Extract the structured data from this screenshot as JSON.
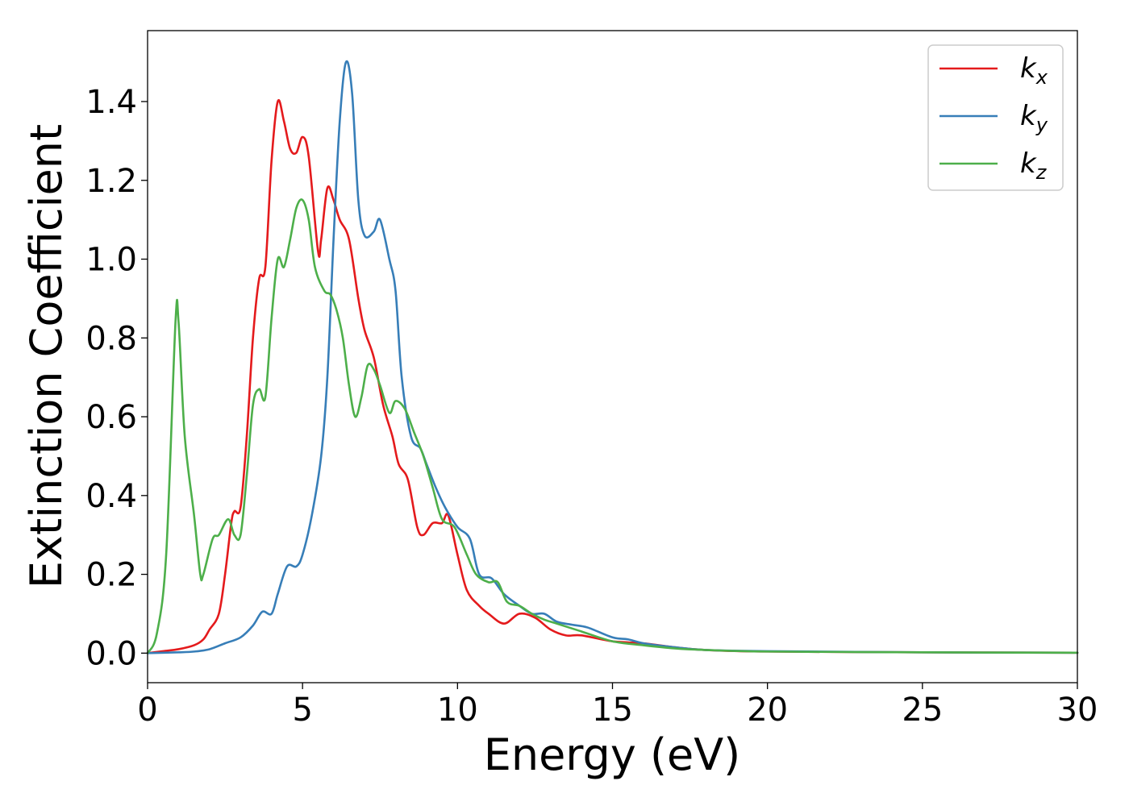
{
  "chart_data": {
    "type": "line",
    "title": "",
    "xlabel": "Energy (eV)",
    "ylabel": "Extinction Coefficient",
    "xlim": [
      0,
      30
    ],
    "ylim": [
      -0.075,
      1.58
    ],
    "xticks": [
      0,
      5,
      10,
      15,
      20,
      25,
      30
    ],
    "xtick_labels": [
      "0",
      "5",
      "10",
      "15",
      "20",
      "25",
      "30"
    ],
    "yticks": [
      0.0,
      0.2,
      0.4,
      0.6,
      0.8,
      1.0,
      1.2,
      1.4
    ],
    "ytick_labels": [
      "0.0",
      "0.2",
      "0.4",
      "0.6",
      "0.8",
      "1.0",
      "1.2",
      "1.4"
    ],
    "grid": false,
    "legend": "top-right",
    "series": [
      {
        "name": "k_x",
        "label_base": "k",
        "label_sub": "x",
        "color": "#e41a1c",
        "points": [
          [
            0,
            0.0
          ],
          [
            0.5,
            0.005
          ],
          [
            1.0,
            0.01
          ],
          [
            1.5,
            0.02
          ],
          [
            1.8,
            0.035
          ],
          [
            2.0,
            0.06
          ],
          [
            2.3,
            0.1
          ],
          [
            2.5,
            0.2
          ],
          [
            2.7,
            0.33
          ],
          [
            2.8,
            0.36
          ],
          [
            3.0,
            0.37
          ],
          [
            3.2,
            0.55
          ],
          [
            3.4,
            0.8
          ],
          [
            3.6,
            0.95
          ],
          [
            3.8,
            0.98
          ],
          [
            4.0,
            1.25
          ],
          [
            4.2,
            1.4
          ],
          [
            4.4,
            1.35
          ],
          [
            4.6,
            1.28
          ],
          [
            4.8,
            1.27
          ],
          [
            5.0,
            1.31
          ],
          [
            5.2,
            1.26
          ],
          [
            5.5,
            1.02
          ],
          [
            5.6,
            1.05
          ],
          [
            5.8,
            1.18
          ],
          [
            6.0,
            1.15
          ],
          [
            6.2,
            1.1
          ],
          [
            6.5,
            1.05
          ],
          [
            6.8,
            0.9
          ],
          [
            7.0,
            0.82
          ],
          [
            7.3,
            0.75
          ],
          [
            7.6,
            0.63
          ],
          [
            7.9,
            0.55
          ],
          [
            8.1,
            0.48
          ],
          [
            8.4,
            0.44
          ],
          [
            8.7,
            0.32
          ],
          [
            8.9,
            0.3
          ],
          [
            9.2,
            0.33
          ],
          [
            9.5,
            0.33
          ],
          [
            9.7,
            0.35
          ],
          [
            10.0,
            0.25
          ],
          [
            10.3,
            0.16
          ],
          [
            10.7,
            0.12
          ],
          [
            11.0,
            0.1
          ],
          [
            11.5,
            0.075
          ],
          [
            12.0,
            0.1
          ],
          [
            12.5,
            0.09
          ],
          [
            13.0,
            0.06
          ],
          [
            13.5,
            0.045
          ],
          [
            14.0,
            0.045
          ],
          [
            15.0,
            0.03
          ],
          [
            16.0,
            0.025
          ],
          [
            17.0,
            0.015
          ],
          [
            18.0,
            0.008
          ],
          [
            20.0,
            0.004
          ],
          [
            25.0,
            0.002
          ],
          [
            30.0,
            0.001
          ]
        ]
      },
      {
        "name": "k_y",
        "label_base": "k",
        "label_sub": "y",
        "color": "#377eb8",
        "points": [
          [
            0,
            0.0
          ],
          [
            1.0,
            0.002
          ],
          [
            1.5,
            0.004
          ],
          [
            2.0,
            0.01
          ],
          [
            2.5,
            0.025
          ],
          [
            3.0,
            0.04
          ],
          [
            3.4,
            0.07
          ],
          [
            3.7,
            0.105
          ],
          [
            4.0,
            0.1
          ],
          [
            4.2,
            0.15
          ],
          [
            4.5,
            0.22
          ],
          [
            4.8,
            0.22
          ],
          [
            5.0,
            0.25
          ],
          [
            5.3,
            0.35
          ],
          [
            5.6,
            0.5
          ],
          [
            5.8,
            0.7
          ],
          [
            6.0,
            1.05
          ],
          [
            6.2,
            1.35
          ],
          [
            6.4,
            1.5
          ],
          [
            6.6,
            1.42
          ],
          [
            6.8,
            1.15
          ],
          [
            7.0,
            1.06
          ],
          [
            7.3,
            1.07
          ],
          [
            7.5,
            1.1
          ],
          [
            7.8,
            1.0
          ],
          [
            8.0,
            0.92
          ],
          [
            8.2,
            0.7
          ],
          [
            8.5,
            0.55
          ],
          [
            8.8,
            0.52
          ],
          [
            9.0,
            0.48
          ],
          [
            9.3,
            0.42
          ],
          [
            9.6,
            0.37
          ],
          [
            10.0,
            0.32
          ],
          [
            10.4,
            0.29
          ],
          [
            10.7,
            0.2
          ],
          [
            11.1,
            0.19
          ],
          [
            11.5,
            0.15
          ],
          [
            12.0,
            0.12
          ],
          [
            12.4,
            0.1
          ],
          [
            12.8,
            0.1
          ],
          [
            13.2,
            0.08
          ],
          [
            13.7,
            0.072
          ],
          [
            14.2,
            0.065
          ],
          [
            15.0,
            0.04
          ],
          [
            15.5,
            0.035
          ],
          [
            16.0,
            0.025
          ],
          [
            17.0,
            0.015
          ],
          [
            18.0,
            0.008
          ],
          [
            20.0,
            0.005
          ],
          [
            25.0,
            0.002
          ],
          [
            30.0,
            0.001
          ]
        ]
      },
      {
        "name": "k_z",
        "label_base": "k",
        "label_sub": "z",
        "color": "#4daf4a",
        "points": [
          [
            0,
            0.0
          ],
          [
            0.3,
            0.05
          ],
          [
            0.6,
            0.25
          ],
          [
            0.9,
            0.84
          ],
          [
            1.0,
            0.84
          ],
          [
            1.2,
            0.55
          ],
          [
            1.5,
            0.35
          ],
          [
            1.7,
            0.2
          ],
          [
            1.8,
            0.2
          ],
          [
            2.1,
            0.29
          ],
          [
            2.3,
            0.3
          ],
          [
            2.6,
            0.34
          ],
          [
            2.8,
            0.3
          ],
          [
            3.0,
            0.3
          ],
          [
            3.2,
            0.45
          ],
          [
            3.4,
            0.63
          ],
          [
            3.6,
            0.67
          ],
          [
            3.8,
            0.65
          ],
          [
            4.0,
            0.85
          ],
          [
            4.2,
            1.0
          ],
          [
            4.4,
            0.98
          ],
          [
            4.6,
            1.05
          ],
          [
            4.8,
            1.13
          ],
          [
            5.0,
            1.15
          ],
          [
            5.2,
            1.1
          ],
          [
            5.4,
            0.98
          ],
          [
            5.7,
            0.92
          ],
          [
            5.9,
            0.91
          ],
          [
            6.1,
            0.87
          ],
          [
            6.3,
            0.8
          ],
          [
            6.5,
            0.68
          ],
          [
            6.7,
            0.6
          ],
          [
            6.9,
            0.65
          ],
          [
            7.1,
            0.73
          ],
          [
            7.3,
            0.72
          ],
          [
            7.5,
            0.68
          ],
          [
            7.8,
            0.61
          ],
          [
            8.0,
            0.64
          ],
          [
            8.3,
            0.62
          ],
          [
            8.6,
            0.56
          ],
          [
            8.9,
            0.5
          ],
          [
            9.2,
            0.42
          ],
          [
            9.5,
            0.34
          ],
          [
            9.9,
            0.32
          ],
          [
            10.3,
            0.25
          ],
          [
            10.6,
            0.2
          ],
          [
            11.0,
            0.18
          ],
          [
            11.3,
            0.18
          ],
          [
            11.6,
            0.13
          ],
          [
            12.0,
            0.12
          ],
          [
            12.4,
            0.1
          ],
          [
            12.8,
            0.085
          ],
          [
            13.2,
            0.075
          ],
          [
            14.0,
            0.055
          ],
          [
            15.0,
            0.03
          ],
          [
            16.0,
            0.02
          ],
          [
            17.0,
            0.012
          ],
          [
            18.0,
            0.008
          ],
          [
            20.0,
            0.004
          ],
          [
            25.0,
            0.002
          ],
          [
            30.0,
            0.001
          ]
        ]
      }
    ]
  }
}
